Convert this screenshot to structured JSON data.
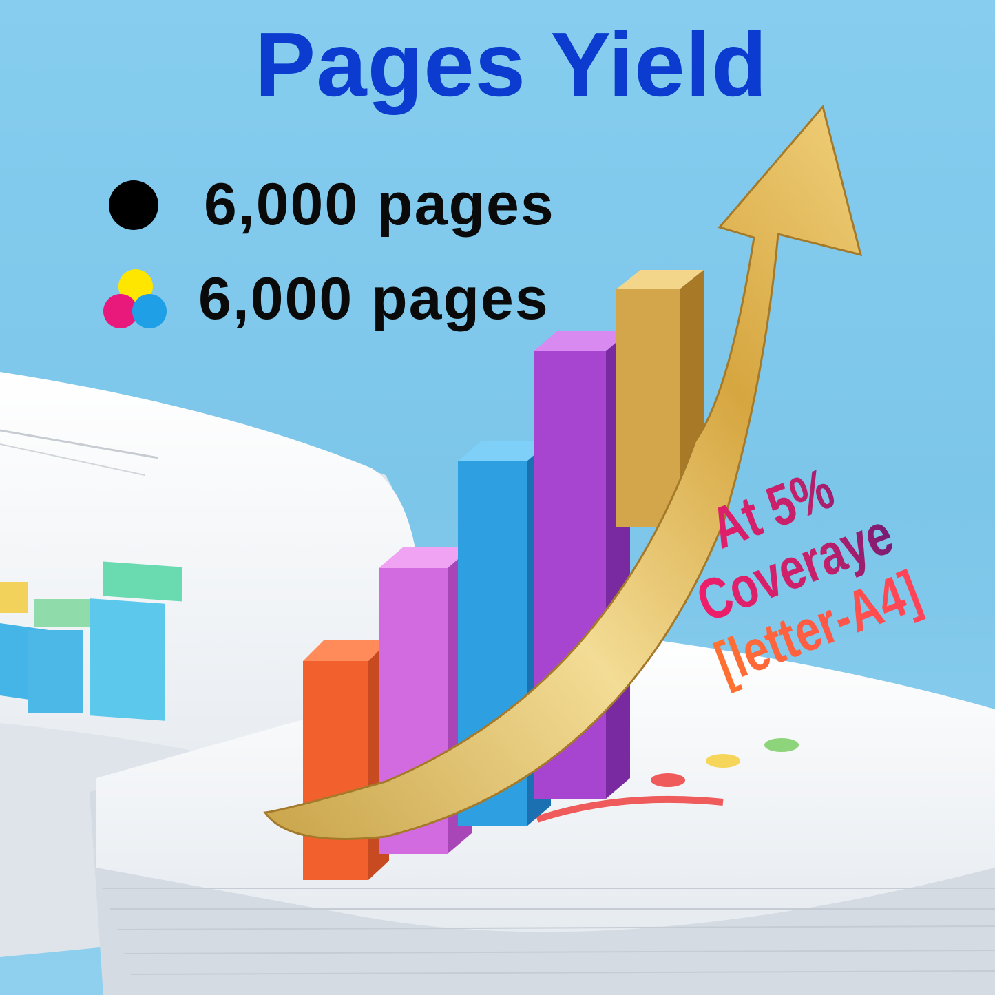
{
  "title": "Pages Yield",
  "yields": [
    {
      "icon": "black-ink-dot-icon",
      "text": "6,000 pages"
    },
    {
      "icon": "color-ink-dots-icon",
      "text": "6,000 pages"
    }
  ],
  "coverage_note": {
    "line1": "At 5% Coveraye",
    "line2": "[letter-A4]"
  },
  "colors": {
    "title": "#0b3ccf",
    "black": "#000000",
    "yellow": "#ffe600",
    "magenta": "#e8197a",
    "cyan": "#1fa0e6"
  }
}
